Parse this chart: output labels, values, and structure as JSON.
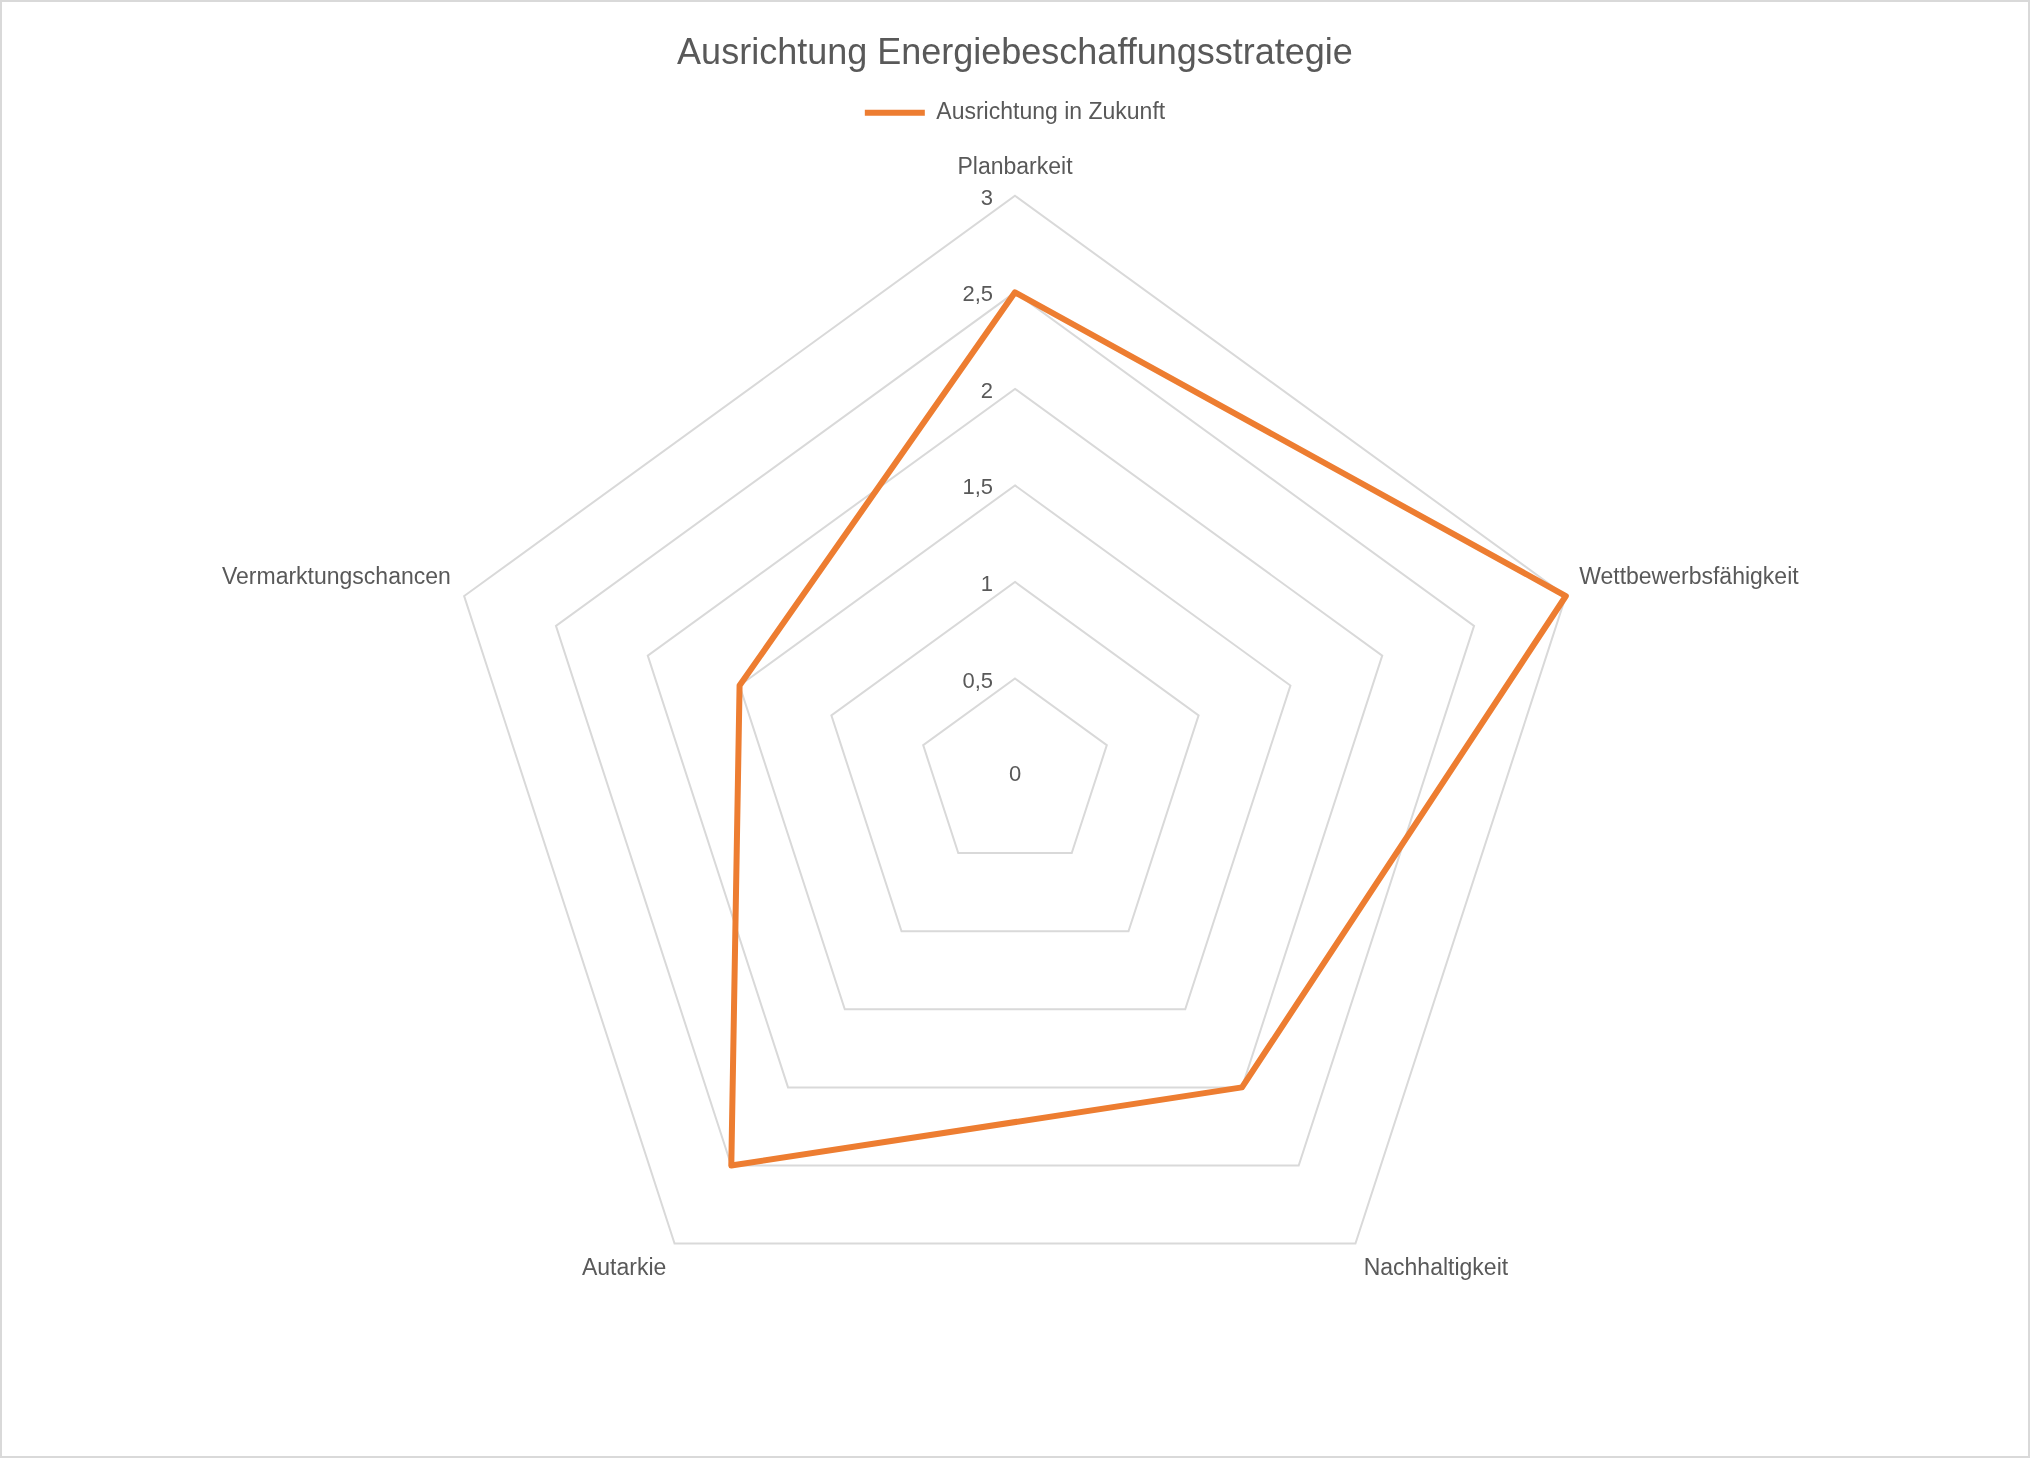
{
  "chart_data": {
    "type": "radar",
    "title": "Ausrichtung Energiebeschaffungsstrategie",
    "categories": [
      "Planbarkeit",
      "Wettbewerbsfähigkeit",
      "Nachhaltigkeit",
      "Autarkie",
      "Vermarktungschancen"
    ],
    "series": [
      {
        "name": "Ausrichtung in Zukunft",
        "color": "#ed7d31",
        "values": [
          2.5,
          3,
          2,
          2.5,
          1.5
        ]
      }
    ],
    "ylim": [
      0,
      3
    ],
    "yticks": [
      0,
      {
        "value": 0.5,
        "label": "0,5"
      },
      1,
      {
        "value": 1.5,
        "label": "1,5"
      },
      2,
      {
        "value": 2.5,
        "label": "2,5"
      },
      3
    ],
    "grid": true,
    "legend": "top",
    "marker": "none",
    "line_style": "solid"
  }
}
